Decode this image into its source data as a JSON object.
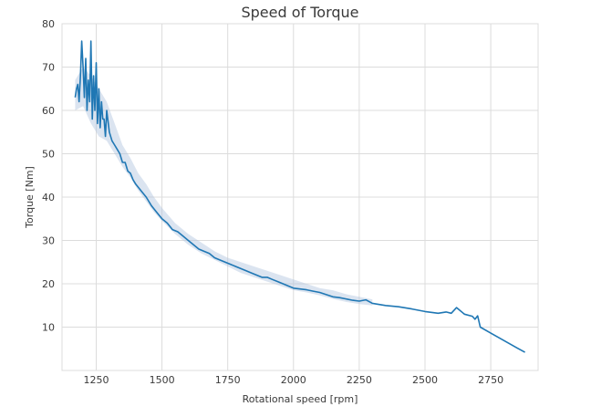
{
  "chart_data": {
    "type": "line",
    "title": "Speed of Torque",
    "xlabel": "Rotational speed [rpm]",
    "ylabel": "Torque [Nm]",
    "xlim": [
      1120,
      2930
    ],
    "ylim": [
      0,
      80
    ],
    "xticks": [
      1250,
      1500,
      1750,
      2000,
      2250,
      2500,
      2750
    ],
    "yticks": [
      10,
      20,
      30,
      40,
      50,
      60,
      70,
      80
    ],
    "grid": true,
    "legend": "none",
    "colors": {
      "line": "#1f77b4",
      "band": "#b0c4de",
      "grid": "#dcdcdc",
      "frame": "#dcdcdc",
      "text": "#3a3a3a"
    },
    "series": [
      {
        "x": [
          1170,
          1175,
          1180,
          1185,
          1190,
          1195,
          1200,
          1205,
          1210,
          1215,
          1220,
          1225,
          1230,
          1235,
          1240,
          1245,
          1250,
          1255,
          1260,
          1265,
          1270,
          1275,
          1280,
          1285,
          1290,
          1300,
          1310,
          1320,
          1330,
          1340,
          1350,
          1360,
          1370,
          1380,
          1390,
          1400,
          1420,
          1440,
          1460,
          1480,
          1500,
          1520,
          1540,
          1560,
          1580,
          1600,
          1620,
          1640,
          1660,
          1680,
          1700,
          1720,
          1740,
          1760,
          1780,
          1800,
          1820,
          1840,
          1860,
          1880,
          1900,
          1920,
          1940,
          1960,
          1980,
          2000,
          2025,
          2050,
          2075,
          2100,
          2125,
          2150,
          2175,
          2200,
          2225,
          2250,
          2275,
          2300,
          2350,
          2400,
          2450,
          2500,
          2550,
          2580,
          2600,
          2620,
          2650,
          2680,
          2690,
          2700,
          2710,
          2750,
          2800,
          2850,
          2880
        ],
        "y": [
          63,
          65,
          66,
          62,
          68,
          76,
          70,
          63,
          72,
          60,
          67,
          62,
          76,
          58,
          68,
          60,
          71,
          57,
          65,
          56,
          62,
          58,
          58,
          54,
          60,
          55,
          53,
          52,
          51,
          50,
          48,
          48,
          46,
          45.5,
          44,
          43,
          41.5,
          40,
          38,
          36.5,
          35,
          34,
          32.5,
          32,
          31,
          30,
          29,
          28,
          27.5,
          27,
          26,
          25.5,
          25,
          24.5,
          24,
          23.5,
          23,
          22.5,
          22,
          21.5,
          21.5,
          21,
          20.5,
          20,
          19.5,
          19,
          18.8,
          18.6,
          18.3,
          18,
          17.5,
          17,
          16.8,
          16.5,
          16.2,
          16,
          16.3,
          15.5,
          15,
          14.7,
          14.2,
          13.6,
          13.2,
          13.5,
          13.2,
          14.5,
          13,
          12.5,
          11.8,
          12.6,
          10,
          8.6,
          6.9,
          5.2,
          4.2
        ]
      }
    ],
    "confidence_band": {
      "x": [
        1170,
        1200,
        1230,
        1260,
        1290,
        1320,
        1350,
        1380,
        1410,
        1440,
        1470,
        1500,
        1550,
        1600,
        1650,
        1700,
        1750,
        1800,
        1850,
        1900,
        1950,
        2000,
        2050,
        2100,
        2150,
        2200,
        2250,
        2300
      ],
      "lower": [
        60,
        61,
        57,
        54,
        53,
        50,
        47,
        44.5,
        41.5,
        39,
        36.5,
        34.5,
        31.5,
        29,
        27,
        25.5,
        24,
        22.5,
        21.5,
        20.5,
        19.5,
        18.5,
        18,
        17.3,
        16.5,
        15.8,
        15.3,
        15
      ],
      "upper": [
        67,
        70,
        68,
        65,
        62,
        57,
        52,
        49,
        45.5,
        43,
        40,
        37.5,
        34,
        31.5,
        29.5,
        27.5,
        26,
        25,
        24,
        23,
        22,
        21,
        20,
        19,
        18.5,
        17.6,
        17,
        16.4
      ]
    }
  }
}
